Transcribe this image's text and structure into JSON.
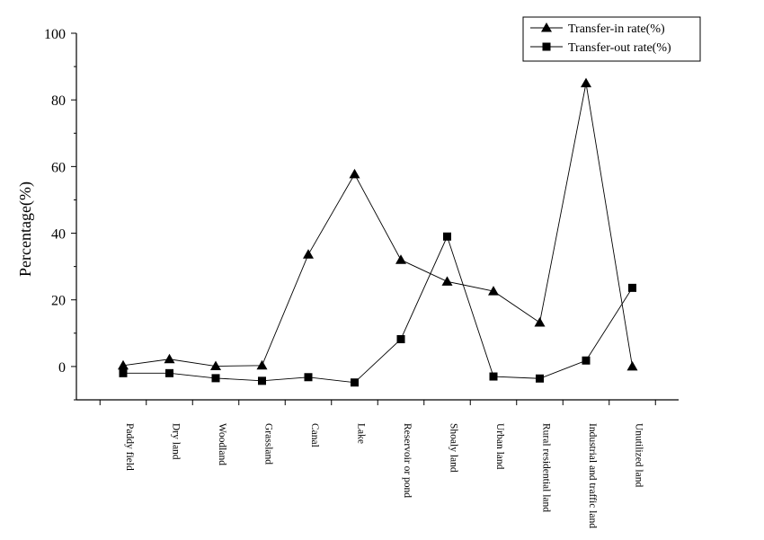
{
  "chart_data": {
    "type": "line",
    "categories": [
      "Paddy field",
      "Dry land",
      "Woodland",
      "Grassland",
      "Canal",
      "Lake",
      "Reservoir or pond",
      "Shoaly land",
      "Urban land",
      "Rural residential land",
      "Industrial and traffic land",
      "Unutilized land"
    ],
    "series": [
      {
        "name": "Transfer-in rate(%)",
        "marker": "triangle",
        "values": [
          0.3,
          2.2,
          0.1,
          0.3,
          33.6,
          57.7,
          32.0,
          25.5,
          22.6,
          13.2,
          85.0,
          0.0
        ]
      },
      {
        "name": "Transfer-out rate(%)",
        "marker": "square",
        "values": [
          -2.0,
          -2.0,
          -3.5,
          -4.3,
          -3.2,
          -4.8,
          8.2,
          39.0,
          -3.0,
          -3.6,
          1.8,
          23.6
        ]
      }
    ],
    "ylabel": "Percentage(%)",
    "xlabel": "",
    "ylim": [
      -10,
      100
    ],
    "yticks": [
      "0",
      "20",
      "40",
      "60",
      "80",
      "100"
    ],
    "legend": "top-right",
    "grid": false,
    "line_color": "#000000"
  }
}
